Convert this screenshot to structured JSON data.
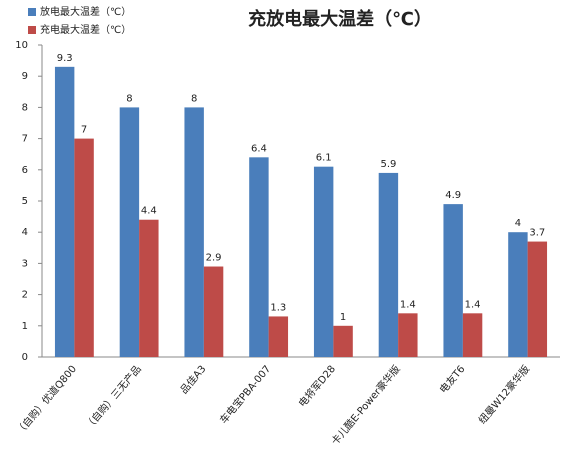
{
  "chart_data": {
    "type": "bar",
    "title": "充放电最大温差（℃）",
    "categories": [
      "（自购）优道Q800",
      "（自购）三无产品",
      "品佳A3",
      "车电宝PBA-007",
      "电将军D28",
      "卡儿酷E-Power豪华版",
      "电友T6",
      "纽曼W12豪华版"
    ],
    "series": [
      {
        "name": "放电最大温差（℃）",
        "color": "#4a7ebb",
        "values": [
          9.3,
          8,
          8,
          6.4,
          6.1,
          5.9,
          4.9,
          4
        ]
      },
      {
        "name": "充电最大温差（℃）",
        "color": "#be4b48",
        "values": [
          7,
          4.4,
          2.9,
          1.3,
          1,
          1.4,
          1.4,
          3.7
        ]
      }
    ],
    "ylim": [
      0,
      10
    ],
    "yticks": [
      0,
      1,
      2,
      3,
      4,
      5,
      6,
      7,
      8,
      9,
      10
    ],
    "grid": false,
    "legend": "top-left"
  }
}
